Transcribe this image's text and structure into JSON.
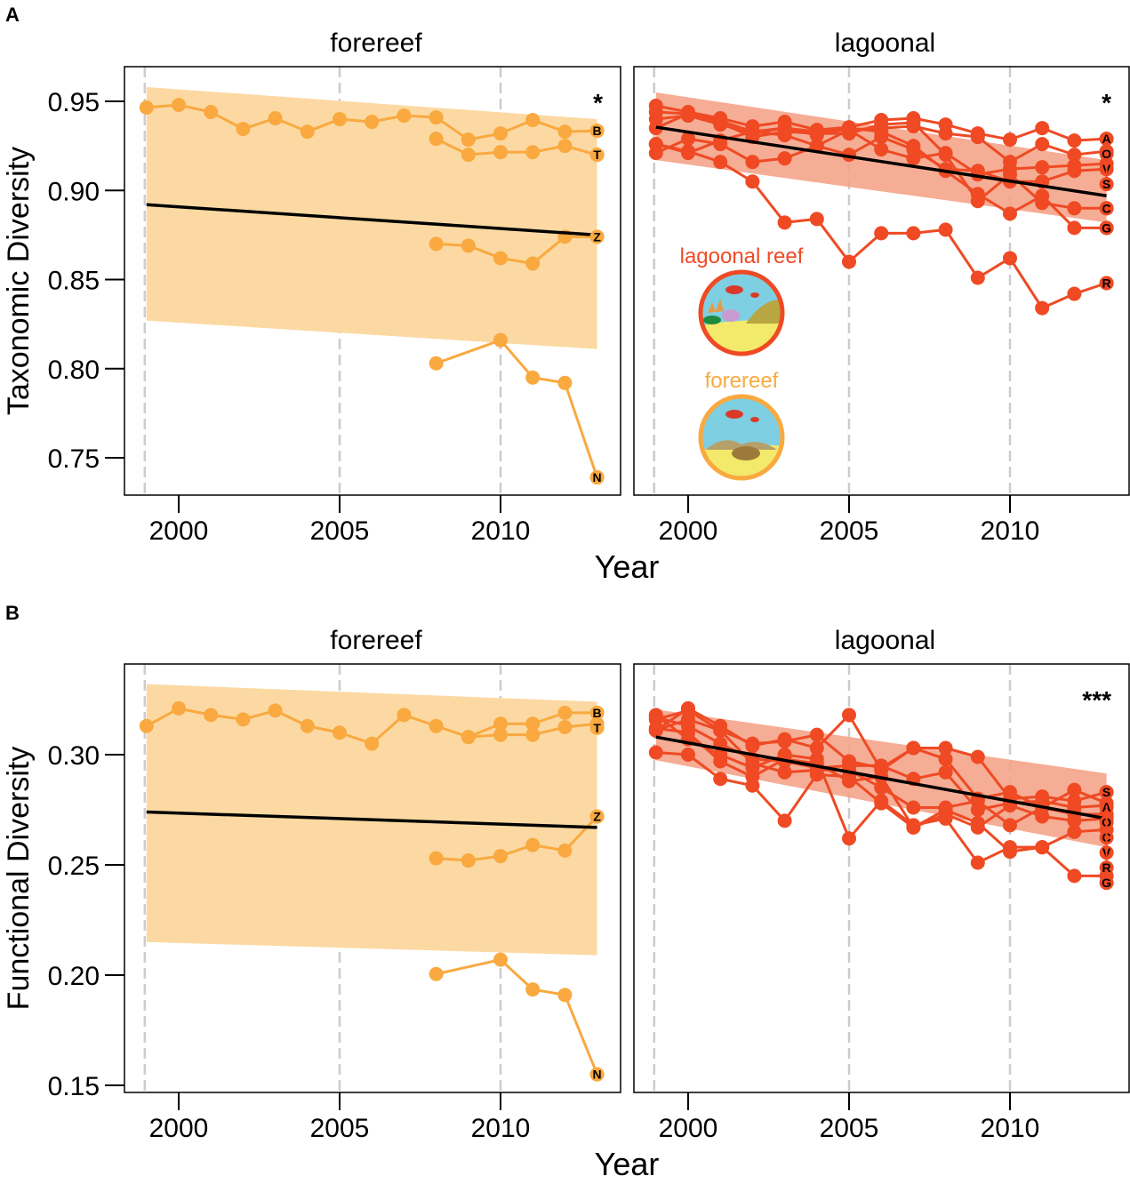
{
  "colors": {
    "forereef": "#f9a93f",
    "forereef_ribbon": "#fcd9a3",
    "lagoonal": "#ef4a24",
    "lagoonal_ribbon": "#f5a48a",
    "trend": "#000000",
    "gridline": "#cccccc"
  },
  "inset": {
    "lagoonal_label": "lagoonal reef",
    "forereef_label": "forereef"
  },
  "chart_data": [
    {
      "panel_letter": "A",
      "type": "line",
      "ylabel": "Taxonomic Diversity",
      "xlabel": "Year",
      "ylim": [
        0.73,
        0.97
      ],
      "yticks": [
        "0.75",
        "0.80",
        "0.85",
        "0.90",
        "0.95"
      ],
      "xticks": [
        "2000",
        "2005",
        "2010"
      ],
      "dashed_vlines": [
        1999,
        2005,
        2010
      ],
      "facets": [
        {
          "title": "forereef",
          "significance": "*",
          "color": "forereef",
          "trend": {
            "x": [
              1999,
              2013
            ],
            "y": [
              0.892,
              0.875
            ]
          },
          "ribbon": {
            "x": [
              1999,
              2013
            ],
            "upper": [
              0.958,
              0.94
            ],
            "lower": [
              0.827,
              0.811
            ]
          },
          "series": [
            {
              "name": "B",
              "x": [
                1999,
                2000,
                2001,
                2002,
                2003,
                2004,
                2005,
                2006,
                2007,
                2008,
                2009,
                2010,
                2011,
                2012,
                2013
              ],
              "y": [
                0.9465,
                0.948,
                0.944,
                0.9345,
                0.9405,
                0.933,
                0.94,
                0.9385,
                0.942,
                0.941,
                0.9285,
                0.932,
                0.9395,
                0.933,
                0.9335
              ]
            },
            {
              "name": "T",
              "x": [
                2008,
                2009,
                2010,
                2011,
                2012,
                2013
              ],
              "y": [
                0.929,
                0.92,
                0.9215,
                0.9215,
                0.925,
                0.92
              ]
            },
            {
              "name": "Z",
              "x": [
                2008,
                2009,
                2010,
                2011,
                2012,
                2013
              ],
              "y": [
                0.87,
                0.869,
                0.862,
                0.859,
                0.874,
                0.874
              ]
            },
            {
              "name": "N",
              "x": [
                2008,
                2010,
                2011,
                2012,
                2013
              ],
              "y": [
                0.803,
                0.816,
                0.795,
                0.792,
                0.739
              ]
            }
          ]
        },
        {
          "title": "lagoonal",
          "significance": "*",
          "color": "lagoonal",
          "trend": {
            "x": [
              1999,
              2013
            ],
            "y": [
              0.9355,
              0.897
            ]
          },
          "ribbon": {
            "x": [
              1999,
              2013
            ],
            "upper": [
              0.955,
              0.917
            ],
            "lower": [
              0.917,
              0.882
            ]
          },
          "series": [
            {
              "name": "A",
              "x": [
                1999,
                2000,
                2001,
                2002,
                2003,
                2004,
                2005,
                2006,
                2007,
                2008,
                2009,
                2010,
                2011,
                2012,
                2013
              ],
              "y": [
                0.9475,
                0.944,
                0.9405,
                0.936,
                0.9385,
                0.934,
                0.9355,
                0.9395,
                0.9405,
                0.937,
                0.932,
                0.9285,
                0.935,
                0.928,
                0.929
              ]
            },
            {
              "name": "O",
              "x": [
                1999,
                2000,
                2001,
                2002,
                2003,
                2004,
                2005,
                2006,
                2007,
                2008,
                2009,
                2010,
                2011,
                2012,
                2013
              ],
              "y": [
                0.94,
                0.942,
                0.937,
                0.932,
                0.935,
                0.933,
                0.934,
                0.935,
                0.936,
                0.932,
                0.93,
                0.916,
                0.926,
                0.92,
                0.922
              ]
            },
            {
              "name": "V",
              "x": [
                1999,
                2000,
                2001,
                2002,
                2003,
                2004,
                2005,
                2006,
                2007,
                2008,
                2009,
                2010,
                2011,
                2012,
                2013
              ],
              "y": [
                0.921,
                0.929,
                0.926,
                0.916,
                0.918,
                0.925,
                0.934,
                0.923,
                0.918,
                0.921,
                0.909,
                0.912,
                0.913,
                0.914,
                0.915
              ]
            },
            {
              "name": "S",
              "x": [
                1999,
                2000,
                2001,
                2002,
                2003,
                2004,
                2005,
                2006,
                2007,
                2008,
                2009,
                2010,
                2011,
                2012,
                2013
              ],
              "y": [
                0.926,
                0.921,
                0.928,
                0.933,
                0.931,
                0.925,
                0.92,
                0.93,
                0.923,
                0.912,
                0.911,
                0.905,
                0.905,
                0.911,
                0.912
              ]
            },
            {
              "name": "C",
              "x": [
                1999,
                2000,
                2001,
                2002,
                2003,
                2004,
                2005,
                2006,
                2007,
                2008,
                2009,
                2010,
                2011,
                2012,
                2013
              ],
              "y": [
                0.935,
                0.943,
                0.938,
                0.93,
                0.933,
                0.932,
                0.932,
                0.937,
                0.938,
                0.92,
                0.894,
                0.909,
                0.893,
                0.89,
                0.89
              ]
            },
            {
              "name": "G",
              "x": [
                1999,
                2000,
                2001,
                2002,
                2003,
                2004,
                2005,
                2006,
                2007,
                2008,
                2009,
                2010,
                2011,
                2012,
                2013
              ],
              "y": [
                0.944,
                0.943,
                0.939,
                0.933,
                0.935,
                0.931,
                0.935,
                0.933,
                0.925,
                0.911,
                0.898,
                0.887,
                0.897,
                0.879,
                0.879
              ]
            },
            {
              "name": "R",
              "x": [
                1999,
                2000,
                2001,
                2002,
                2003,
                2004,
                2005,
                2006,
                2007,
                2008,
                2009,
                2010,
                2011,
                2012,
                2013
              ],
              "y": [
                0.926,
                0.922,
                0.916,
                0.905,
                0.882,
                0.884,
                0.86,
                0.876,
                0.876,
                0.878,
                0.851,
                0.862,
                0.834,
                0.842,
                0.848
              ]
            }
          ]
        }
      ]
    },
    {
      "panel_letter": "B",
      "type": "line",
      "ylabel": "Functional Diversity",
      "xlabel": "Year",
      "ylim": [
        0.145,
        0.338
      ],
      "yticks": [
        "0.15",
        "0.20",
        "0.25",
        "0.30"
      ],
      "xticks": [
        "2000",
        "2005",
        "2010"
      ],
      "dashed_vlines": [
        1999,
        2005,
        2010
      ],
      "facets": [
        {
          "title": "forereef",
          "significance": "",
          "color": "forereef",
          "trend": {
            "x": [
              1999,
              2013
            ],
            "y": [
              0.274,
              0.267
            ]
          },
          "ribbon": {
            "x": [
              1999,
              2013
            ],
            "upper": [
              0.332,
              0.324
            ],
            "lower": [
              0.215,
              0.209
            ]
          },
          "series": [
            {
              "name": "B",
              "x": [
                1999,
                2000,
                2001,
                2002,
                2003,
                2004,
                2005,
                2006,
                2007,
                2008,
                2009,
                2010,
                2011,
                2012,
                2013
              ],
              "y": [
                0.313,
                0.321,
                0.318,
                0.316,
                0.32,
                0.313,
                0.31,
                0.305,
                0.318,
                0.313,
                0.308,
                0.314,
                0.314,
                0.319,
                0.319
              ]
            },
            {
              "name": "T",
              "x": [
                2009,
                2010,
                2011,
                2012,
                2013
              ],
              "y": [
                0.308,
                0.309,
                0.309,
                0.3125,
                0.314
              ]
            },
            {
              "name": "Z",
              "x": [
                2008,
                2009,
                2010,
                2011,
                2012,
                2013
              ],
              "y": [
                0.253,
                0.252,
                0.254,
                0.259,
                0.2565,
                0.272
              ]
            },
            {
              "name": "N",
              "x": [
                2008,
                2010,
                2011,
                2012,
                2013
              ],
              "y": [
                0.2005,
                0.207,
                0.1935,
                0.191,
                0.155
              ]
            }
          ]
        },
        {
          "title": "lagoonal",
          "significance": "***",
          "color": "lagoonal",
          "trend": {
            "x": [
              1999,
              2013
            ],
            "y": [
              0.308,
              0.271
            ]
          },
          "ribbon": {
            "x": [
              1999,
              2013
            ],
            "upper": [
              0.3205,
              0.2915
            ],
            "lower": [
              0.2975,
              0.258
            ]
          },
          "series": [
            {
              "name": "S",
              "x": [
                1999,
                2000,
                2001,
                2002,
                2003,
                2004,
                2005,
                2006,
                2007,
                2008,
                2009,
                2010,
                2011,
                2012,
                2013
              ],
              "y": [
                0.316,
                0.32,
                0.311,
                0.305,
                0.306,
                0.309,
                0.297,
                0.294,
                0.303,
                0.303,
                0.299,
                0.28,
                0.281,
                0.279,
                0.283
              ]
            },
            {
              "name": "A",
              "x": [
                1999,
                2000,
                2001,
                2002,
                2003,
                2004,
                2005,
                2006,
                2007,
                2008,
                2009,
                2010,
                2011,
                2012,
                2013
              ],
              "y": [
                0.311,
                0.321,
                0.313,
                0.304,
                0.307,
                0.303,
                0.318,
                0.293,
                0.303,
                0.298,
                0.28,
                0.283,
                0.276,
                0.284,
                0.278
              ]
            },
            {
              "name": "O",
              "x": [
                1999,
                2000,
                2001,
                2002,
                2003,
                2004,
                2005,
                2006,
                2007,
                2008,
                2009,
                2010,
                2011,
                2012,
                2013
              ],
              "y": [
                0.317,
                0.313,
                0.305,
                0.298,
                0.297,
                0.294,
                0.295,
                0.295,
                0.289,
                0.292,
                0.275,
                0.278,
                0.279,
                0.276,
                0.277
              ]
            },
            {
              "name": "C",
              "x": [
                1999,
                2000,
                2001,
                2002,
                2003,
                2004,
                2005,
                2006,
                2007,
                2008,
                2009,
                2010,
                2011,
                2012,
                2013
              ],
              "y": [
                0.311,
                0.316,
                0.311,
                0.296,
                0.292,
                0.293,
                0.293,
                0.285,
                0.276,
                0.276,
                0.279,
                0.268,
                0.276,
                0.273,
                0.273
              ]
            },
            {
              "name": "V",
              "x": [
                1999,
                2000,
                2001,
                2002,
                2003,
                2004,
                2005,
                2006,
                2007,
                2008,
                2009,
                2010,
                2011,
                2012,
                2013
              ],
              "y": [
                0.301,
                0.3,
                0.289,
                0.286,
                0.27,
                0.291,
                0.29,
                0.278,
                0.267,
                0.273,
                0.267,
                0.277,
                0.272,
                0.27,
                0.271
              ]
            },
            {
              "name": "R",
              "x": [
                1999,
                2000,
                2001,
                2002,
                2003,
                2004,
                2005,
                2006,
                2007,
                2008,
                2009,
                2010,
                2011,
                2012,
                2013
              ],
              "y": [
                0.312,
                0.31,
                0.297,
                0.29,
                0.298,
                0.296,
                0.288,
                0.29,
                0.267,
                0.275,
                0.269,
                0.256,
                0.258,
                0.265,
                0.266
              ]
            },
            {
              "name": "G",
              "x": [
                1999,
                2000,
                2001,
                2002,
                2003,
                2004,
                2005,
                2006,
                2007,
                2008,
                2009,
                2010,
                2011,
                2012,
                2013
              ],
              "y": [
                0.318,
                0.307,
                0.3,
                0.294,
                0.3,
                0.298,
                0.262,
                0.279,
                0.268,
                0.271,
                0.251,
                0.258,
                0.258,
                0.245,
                0.245
              ]
            }
          ]
        }
      ]
    }
  ]
}
